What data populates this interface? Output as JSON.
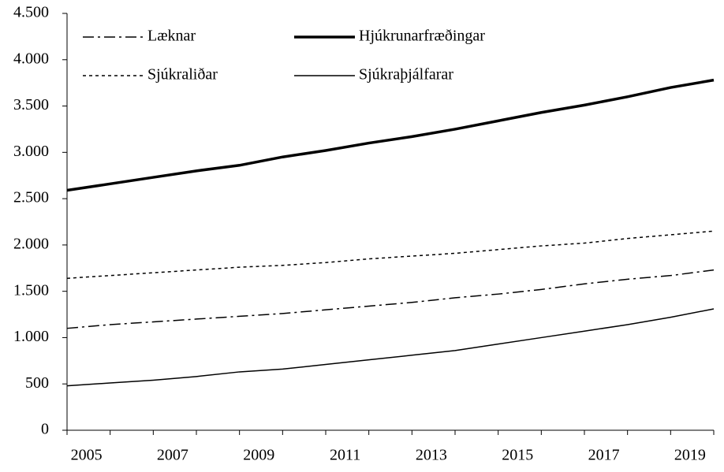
{
  "chart_data": {
    "type": "line",
    "categories": [
      "2005",
      null,
      "2007",
      null,
      "2009",
      null,
      "2011",
      null,
      "2013",
      null,
      "2015",
      null,
      "2017",
      null,
      "2019",
      null
    ],
    "series": [
      {
        "name": "Læknar",
        "color": "#000000",
        "line_style": "dash-dot",
        "line_width": 1.5,
        "values": [
          1100,
          1140,
          1170,
          1200,
          1230,
          1260,
          1300,
          1340,
          1380,
          1430,
          1470,
          1520,
          1580,
          1630,
          1670,
          1730
        ]
      },
      {
        "name": "Hjúkrunarfræðingar",
        "color": "#000000",
        "line_style": "solid",
        "line_width": 3.5,
        "values": [
          2590,
          2660,
          2730,
          2800,
          2860,
          2950,
          3020,
          3100,
          3170,
          3250,
          3340,
          3430,
          3510,
          3600,
          3700,
          3780
        ]
      },
      {
        "name": "Sjúkraliðar",
        "color": "#000000",
        "line_style": "dotted",
        "line_width": 1.5,
        "values": [
          1640,
          1670,
          1700,
          1730,
          1760,
          1780,
          1810,
          1850,
          1880,
          1910,
          1950,
          1990,
          2020,
          2070,
          2110,
          2150
        ]
      },
      {
        "name": "Sjúkraþjálfarar",
        "color": "#000000",
        "line_style": "solid",
        "line_width": 1.5,
        "values": [
          480,
          510,
          540,
          580,
          630,
          660,
          710,
          760,
          810,
          860,
          930,
          1000,
          1070,
          1140,
          1220,
          1310
        ]
      }
    ],
    "ylim": [
      0,
      4500
    ],
    "yticks": [
      0,
      500,
      {
        "value": 1000,
        "label": "1.000"
      },
      {
        "value": 1500,
        "label": "1.500"
      },
      {
        "value": 2000,
        "label": "2.000"
      },
      {
        "value": 2500,
        "label": "2.500"
      },
      {
        "value": 3000,
        "label": "3.000"
      },
      {
        "value": 3500,
        "label": "3.500"
      },
      {
        "value": 4000,
        "label": "4.000"
      },
      {
        "value": 4500,
        "label": "4.500"
      }
    ],
    "grid": false,
    "legend": "upper-left"
  }
}
